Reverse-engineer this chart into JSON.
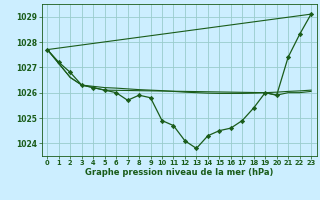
{
  "title": "Graphe pression niveau de la mer (hPa)",
  "background_color": "#cceeff",
  "grid_color": "#99cccc",
  "line_color": "#1a5c1a",
  "marker_color": "#1a5c1a",
  "xlim": [
    -0.5,
    23.5
  ],
  "ylim": [
    1023.5,
    1029.5
  ],
  "yticks": [
    1024,
    1025,
    1026,
    1027,
    1028,
    1029
  ],
  "xticks": [
    0,
    1,
    2,
    3,
    4,
    5,
    6,
    7,
    8,
    9,
    10,
    11,
    12,
    13,
    14,
    15,
    16,
    17,
    18,
    19,
    20,
    21,
    22,
    23
  ],
  "series": [
    {
      "x": [
        0,
        1,
        2,
        3,
        4,
        5,
        6,
        7,
        8,
        9,
        10,
        11,
        12,
        13,
        14,
        15,
        16,
        17,
        18,
        19,
        20,
        21,
        22,
        23
      ],
      "y": [
        1027.7,
        1027.2,
        1026.8,
        1026.3,
        1026.2,
        1026.1,
        1026.0,
        1025.7,
        1025.9,
        1025.8,
        1024.9,
        1024.7,
        1024.1,
        1023.8,
        1024.3,
        1024.5,
        1024.6,
        1024.9,
        1025.4,
        1026.0,
        1025.9,
        1027.4,
        1028.3,
        1029.1
      ],
      "has_markers": true
    },
    {
      "x": [
        0,
        23
      ],
      "y": [
        1027.7,
        1029.1
      ],
      "has_markers": false
    },
    {
      "x": [
        0,
        2,
        3,
        4,
        5,
        6,
        7,
        8,
        9,
        10,
        11,
        12,
        13,
        14,
        15,
        16,
        17,
        18,
        19,
        20,
        21,
        22,
        23
      ],
      "y": [
        1027.7,
        1026.6,
        1026.3,
        1026.25,
        1026.2,
        1026.18,
        1026.15,
        1026.12,
        1026.1,
        1026.08,
        1026.05,
        1026.02,
        1026.0,
        1025.98,
        1025.97,
        1025.97,
        1025.97,
        1025.98,
        1026.0,
        1026.02,
        1026.05,
        1026.07,
        1026.1
      ],
      "has_markers": false
    },
    {
      "x": [
        0,
        2,
        3,
        4,
        5,
        19,
        20,
        21,
        22,
        23
      ],
      "y": [
        1027.7,
        1026.6,
        1026.3,
        1026.2,
        1026.1,
        1026.0,
        1025.9,
        1026.0,
        1026.0,
        1026.05
      ],
      "has_markers": false
    }
  ]
}
